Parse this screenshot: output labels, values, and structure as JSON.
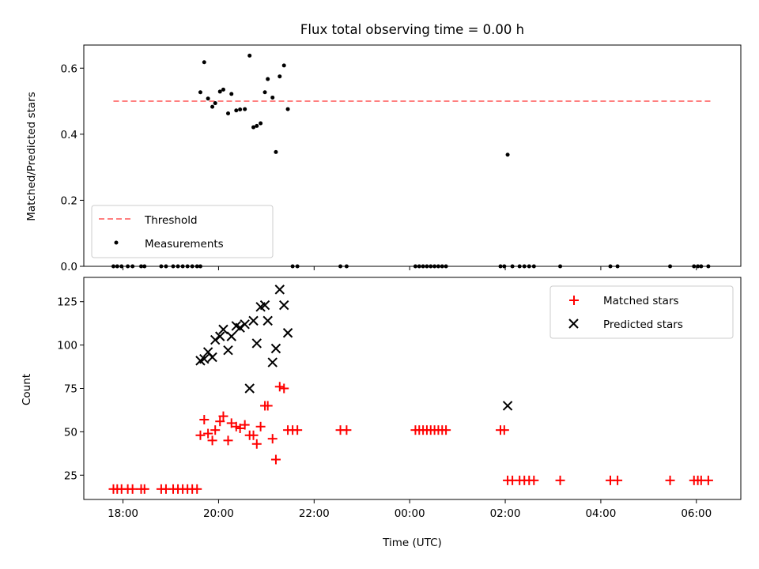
{
  "title": "Flux total observing time = 0.00 h",
  "colors": {
    "threshold": "#ff7f7f",
    "measurements": "#000000",
    "matched": "#ff0000",
    "predicted": "#000000"
  },
  "chart_data": [
    {
      "type": "scatter",
      "title": "Flux total observing time = 0.00 h",
      "ylabel": "Matched/Predicted stars",
      "xlabel": "",
      "x_unit": "hours since 17:00 UTC",
      "xlim": [
        17.18,
        30.93
      ],
      "ylim": [
        0.0,
        0.67
      ],
      "yticks": [
        0.0,
        0.2,
        0.4,
        0.6
      ],
      "ytick_labels": [
        "0.0",
        "0.2",
        "0.4",
        "0.6"
      ],
      "legend_position": "lower-left",
      "threshold": {
        "name": "Threshold",
        "value": 0.5,
        "x_range": [
          17.8,
          30.3
        ]
      },
      "series": [
        {
          "name": "Measurements",
          "marker": "dot",
          "points": [
            [
              19.62,
              0.527
            ],
            [
              19.7,
              0.618
            ],
            [
              19.78,
              0.508
            ],
            [
              19.87,
              0.483
            ],
            [
              19.93,
              0.494
            ],
            [
              20.03,
              0.529
            ],
            [
              20.1,
              0.535
            ],
            [
              20.2,
              0.463
            ],
            [
              20.27,
              0.522
            ],
            [
              20.37,
              0.472
            ],
            [
              20.45,
              0.475
            ],
            [
              20.55,
              0.476
            ],
            [
              20.65,
              0.638
            ],
            [
              20.73,
              0.421
            ],
            [
              20.8,
              0.425
            ],
            [
              20.88,
              0.433
            ],
            [
              20.97,
              0.527
            ],
            [
              21.03,
              0.567
            ],
            [
              21.13,
              0.511
            ],
            [
              21.2,
              0.346
            ],
            [
              21.28,
              0.575
            ],
            [
              21.37,
              0.608
            ],
            [
              21.45,
              0.476
            ],
            [
              26.05,
              0.338
            ],
            [
              17.8,
              0.0
            ],
            [
              17.88,
              0.0
            ],
            [
              17.97,
              0.0
            ],
            [
              18.1,
              0.0
            ],
            [
              18.2,
              0.0
            ],
            [
              18.38,
              0.0
            ],
            [
              18.45,
              0.0
            ],
            [
              18.8,
              0.0
            ],
            [
              18.9,
              0.0
            ],
            [
              19.05,
              0.0
            ],
            [
              19.15,
              0.0
            ],
            [
              19.25,
              0.0
            ],
            [
              19.35,
              0.0
            ],
            [
              19.45,
              0.0
            ],
            [
              19.55,
              0.0
            ],
            [
              19.62,
              0.0
            ],
            [
              21.55,
              0.0
            ],
            [
              21.65,
              0.0
            ],
            [
              22.55,
              0.0
            ],
            [
              22.68,
              0.0
            ],
            [
              24.12,
              0.0
            ],
            [
              24.2,
              0.0
            ],
            [
              24.28,
              0.0
            ],
            [
              24.36,
              0.0
            ],
            [
              24.44,
              0.0
            ],
            [
              24.52,
              0.0
            ],
            [
              24.6,
              0.0
            ],
            [
              24.68,
              0.0
            ],
            [
              24.76,
              0.0
            ],
            [
              25.9,
              0.0
            ],
            [
              25.98,
              0.0
            ],
            [
              26.15,
              0.0
            ],
            [
              26.3,
              0.0
            ],
            [
              26.4,
              0.0
            ],
            [
              26.5,
              0.0
            ],
            [
              26.6,
              0.0
            ],
            [
              27.15,
              0.0
            ],
            [
              28.2,
              0.0
            ],
            [
              28.35,
              0.0
            ],
            [
              29.45,
              0.0
            ],
            [
              29.95,
              0.0
            ],
            [
              30.03,
              0.0
            ],
            [
              30.1,
              0.0
            ],
            [
              30.25,
              0.0
            ]
          ]
        }
      ],
      "legend": {
        "threshold": "Threshold",
        "measurements": "Measurements"
      }
    },
    {
      "type": "scatter",
      "ylabel": "Count",
      "xlabel": "Time (UTC)",
      "x_unit": "hours since 17:00 UTC",
      "xlim": [
        17.18,
        30.93
      ],
      "ylim": [
        11,
        139
      ],
      "yticks": [
        25,
        50,
        75,
        100,
        125
      ],
      "ytick_labels": [
        "25",
        "50",
        "75",
        "100",
        "125"
      ],
      "xticks": [
        18,
        20,
        22,
        24,
        26,
        28,
        30
      ],
      "xtick_labels": [
        "18:00",
        "20:00",
        "22:00",
        "00:00",
        "02:00",
        "04:00",
        "06:00"
      ],
      "legend_position": "upper-right",
      "series": [
        {
          "name": "Matched stars",
          "marker": "plus",
          "points": [
            [
              17.8,
              17
            ],
            [
              17.88,
              17
            ],
            [
              17.97,
              17
            ],
            [
              18.1,
              17
            ],
            [
              18.2,
              17
            ],
            [
              18.38,
              17
            ],
            [
              18.45,
              17
            ],
            [
              18.8,
              17
            ],
            [
              18.9,
              17
            ],
            [
              19.05,
              17
            ],
            [
              19.15,
              17
            ],
            [
              19.25,
              17
            ],
            [
              19.35,
              17
            ],
            [
              19.45,
              17
            ],
            [
              19.55,
              17
            ],
            [
              19.62,
              48
            ],
            [
              19.7,
              57
            ],
            [
              19.78,
              49
            ],
            [
              19.87,
              45
            ],
            [
              19.93,
              51
            ],
            [
              20.03,
              56
            ],
            [
              20.1,
              59
            ],
            [
              20.2,
              45
            ],
            [
              20.27,
              55
            ],
            [
              20.37,
              53
            ],
            [
              20.45,
              52
            ],
            [
              20.55,
              54
            ],
            [
              20.65,
              48
            ],
            [
              20.73,
              48
            ],
            [
              20.8,
              43
            ],
            [
              20.88,
              53
            ],
            [
              20.97,
              65
            ],
            [
              21.03,
              65
            ],
            [
              21.13,
              46
            ],
            [
              21.2,
              34
            ],
            [
              21.28,
              76
            ],
            [
              21.37,
              75
            ],
            [
              21.45,
              51
            ],
            [
              21.55,
              51
            ],
            [
              21.65,
              51
            ],
            [
              22.55,
              51
            ],
            [
              22.68,
              51
            ],
            [
              24.12,
              51
            ],
            [
              24.2,
              51
            ],
            [
              24.28,
              51
            ],
            [
              24.36,
              51
            ],
            [
              24.44,
              51
            ],
            [
              24.52,
              51
            ],
            [
              24.6,
              51
            ],
            [
              24.68,
              51
            ],
            [
              24.76,
              51
            ],
            [
              25.9,
              51
            ],
            [
              25.98,
              51
            ],
            [
              26.05,
              22
            ],
            [
              26.15,
              22
            ],
            [
              26.3,
              22
            ],
            [
              26.4,
              22
            ],
            [
              26.5,
              22
            ],
            [
              26.6,
              22
            ],
            [
              27.15,
              22
            ],
            [
              28.2,
              22
            ],
            [
              28.35,
              22
            ],
            [
              29.45,
              22
            ],
            [
              29.95,
              22
            ],
            [
              30.03,
              22
            ],
            [
              30.1,
              22
            ],
            [
              30.25,
              22
            ]
          ]
        },
        {
          "name": "Predicted stars",
          "marker": "x",
          "points": [
            [
              19.62,
              91
            ],
            [
              19.7,
              92
            ],
            [
              19.78,
              96
            ],
            [
              19.87,
              93
            ],
            [
              19.93,
              103
            ],
            [
              20.03,
              105
            ],
            [
              20.1,
              109
            ],
            [
              20.2,
              97
            ],
            [
              20.27,
              105
            ],
            [
              20.37,
              111
            ],
            [
              20.45,
              110
            ],
            [
              20.55,
              112
            ],
            [
              20.65,
              75
            ],
            [
              20.73,
              114
            ],
            [
              20.8,
              101
            ],
            [
              20.88,
              122
            ],
            [
              20.97,
              123
            ],
            [
              21.03,
              114
            ],
            [
              21.13,
              90
            ],
            [
              21.2,
              98
            ],
            [
              21.28,
              132
            ],
            [
              21.37,
              123
            ],
            [
              21.45,
              107
            ],
            [
              26.05,
              65
            ]
          ]
        }
      ],
      "legend": {
        "matched": "Matched stars",
        "predicted": "Predicted stars"
      }
    }
  ]
}
